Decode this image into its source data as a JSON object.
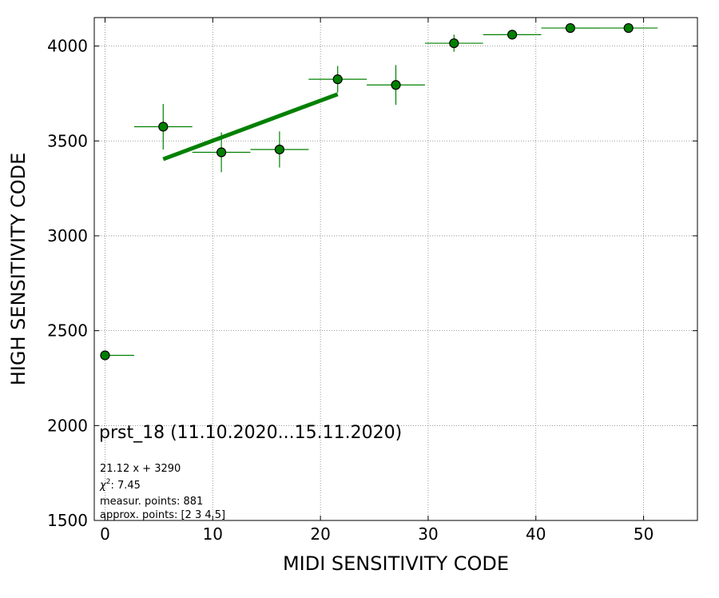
{
  "chart_data": {
    "type": "scatter",
    "xlabel": "MIDI SENSITIVITY CODE",
    "ylabel": "HIGH SENSITIVITY CODE",
    "xlim": [
      -1,
      55
    ],
    "ylim": [
      1500,
      4150
    ],
    "xticks": [
      0,
      10,
      20,
      30,
      40,
      50
    ],
    "yticks": [
      1500,
      2000,
      2500,
      3000,
      3500,
      4000
    ],
    "grid": true,
    "colors": {
      "marker": "#008000",
      "marker_edge": "#000000",
      "errorbar": "#008000",
      "fit": "#008000",
      "grid": "#808080"
    },
    "points": [
      {
        "x": 0.0,
        "y": 2370,
        "xerr_lo": 0.0,
        "xerr_hi": 2.7,
        "yerr": 0
      },
      {
        "x": 5.4,
        "y": 3575,
        "xerr_lo": 2.7,
        "xerr_hi": 2.7,
        "yerr": 120
      },
      {
        "x": 10.8,
        "y": 3440,
        "xerr_lo": 2.7,
        "xerr_hi": 2.7,
        "yerr": 105
      },
      {
        "x": 16.2,
        "y": 3455,
        "xerr_lo": 2.7,
        "xerr_hi": 2.7,
        "yerr": 95
      },
      {
        "x": 21.6,
        "y": 3825,
        "xerr_lo": 2.7,
        "xerr_hi": 2.7,
        "yerr": 70
      },
      {
        "x": 27.0,
        "y": 3795,
        "xerr_lo": 2.7,
        "xerr_hi": 2.7,
        "yerr": 105
      },
      {
        "x": 32.4,
        "y": 4015,
        "xerr_lo": 2.7,
        "xerr_hi": 2.7,
        "yerr": 45
      },
      {
        "x": 37.8,
        "y": 4060,
        "xerr_lo": 2.7,
        "xerr_hi": 2.7,
        "yerr": 25
      },
      {
        "x": 43.2,
        "y": 4095,
        "xerr_lo": 2.7,
        "xerr_hi": 2.7,
        "yerr": 10
      },
      {
        "x": 48.6,
        "y": 4095,
        "xerr_lo": 5.4,
        "xerr_hi": 2.7,
        "yerr": 10
      }
    ],
    "fit": {
      "slope": 21.12,
      "intercept": 3290,
      "x_start": 5.4,
      "x_end": 21.6
    },
    "annotations": {
      "title": "prst_18 (11.10.2020...15.11.2020)",
      "equation": "21.12 x + 3290",
      "chi2_label": "χ",
      "chi2_sup": "2",
      "chi2_value": ": 7.45",
      "measur": "measur. points: 881",
      "approx": "approx. points: [2 3 4 5]"
    }
  }
}
